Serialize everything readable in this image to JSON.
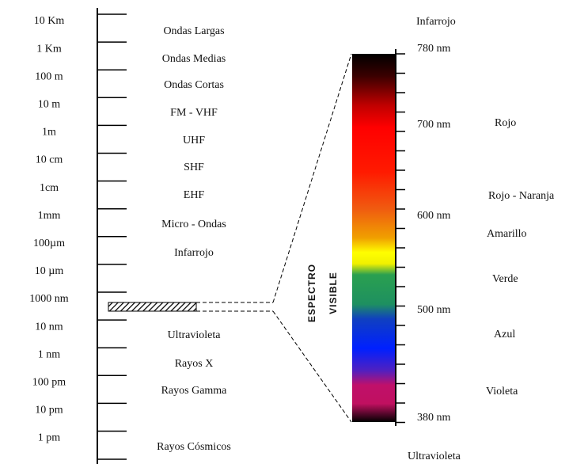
{
  "scale_labels": [
    "10 Km",
    "1 Km",
    "100 m",
    "10 m",
    "1m",
    "10 cm",
    "1cm",
    "1mm",
    "100µm",
    "10 µm",
    "1000 nm",
    "10 nm",
    "1 nm",
    "100 pm",
    "10 pm",
    "1 pm"
  ],
  "bands_upper": [
    "Ondas Largas",
    "Ondas Medias",
    "Ondas Cortas",
    "FM - VHF",
    "UHF",
    "SHF",
    "EHF",
    "Micro - Ondas",
    "Infarrojo"
  ],
  "bands_lower": [
    "Ultravioleta",
    "Rayos X",
    "Rayos Gamma",
    "Rayos Cósmicos"
  ],
  "visible_title": [
    "ESPECTRO",
    "VISIBLE"
  ],
  "spectrum_top": "Infarrojo",
  "spectrum_bottom": "Ultravioleta",
  "wavelengths": [
    "780 nm",
    "700 nm",
    "600 nm",
    "500 nm",
    "380 nm"
  ],
  "colors": [
    "Rojo",
    "Rojo - Naranja",
    "Amarillo",
    "Verde",
    "Azul",
    "Violeta"
  ]
}
